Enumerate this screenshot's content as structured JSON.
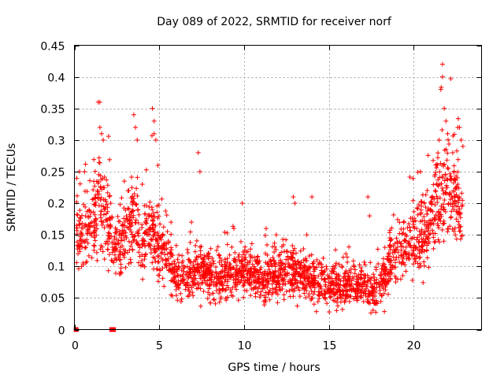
{
  "chart_data": {
    "type": "scatter",
    "title": "Day 089 of 2022, SRMTID for receiver norf",
    "xlabel": "GPS time / hours",
    "ylabel": "SRMTID / TECUs",
    "xlim": [
      0,
      24
    ],
    "ylim": [
      0,
      0.45
    ],
    "x_ticks": [
      "0",
      "5",
      "10",
      "15",
      "20"
    ],
    "y_ticks": [
      "0",
      "0.05",
      "0.1",
      "0.15",
      "0.2",
      "0.25",
      "0.3",
      "0.35",
      "0.4",
      "0.45"
    ],
    "grid": true,
    "marker": "plus",
    "series_color": "#ff0000",
    "trend": [
      [
        0.0,
        0.16
      ],
      [
        0.5,
        0.15
      ],
      [
        1.0,
        0.17
      ],
      [
        1.5,
        0.22
      ],
      [
        2.0,
        0.16
      ],
      [
        2.5,
        0.13
      ],
      [
        3.0,
        0.15
      ],
      [
        3.5,
        0.18
      ],
      [
        4.0,
        0.14
      ],
      [
        4.5,
        0.16
      ],
      [
        5.0,
        0.13
      ],
      [
        5.5,
        0.1
      ],
      [
        6.0,
        0.08
      ],
      [
        6.5,
        0.08
      ],
      [
        7.0,
        0.09
      ],
      [
        7.5,
        0.09
      ],
      [
        8.0,
        0.08
      ],
      [
        9.0,
        0.09
      ],
      [
        10.0,
        0.09
      ],
      [
        11.0,
        0.08
      ],
      [
        12.0,
        0.09
      ],
      [
        13.0,
        0.09
      ],
      [
        14.0,
        0.08
      ],
      [
        15.0,
        0.07
      ],
      [
        16.0,
        0.07
      ],
      [
        17.0,
        0.07
      ],
      [
        17.5,
        0.06
      ],
      [
        18.0,
        0.07
      ],
      [
        18.5,
        0.1
      ],
      [
        19.0,
        0.12
      ],
      [
        19.5,
        0.13
      ],
      [
        20.0,
        0.14
      ],
      [
        20.5,
        0.15
      ],
      [
        21.0,
        0.17
      ],
      [
        21.5,
        0.21
      ],
      [
        22.0,
        0.23
      ],
      [
        22.5,
        0.2
      ],
      [
        23.0,
        0.19
      ]
    ],
    "peaks": [
      [
        1.4,
        0.36
      ],
      [
        1.5,
        0.36
      ],
      [
        1.5,
        0.32
      ],
      [
        1.6,
        0.31
      ],
      [
        1.7,
        0.3
      ],
      [
        3.5,
        0.34
      ],
      [
        3.6,
        0.32
      ],
      [
        3.7,
        0.3
      ],
      [
        4.6,
        0.35
      ],
      [
        4.7,
        0.33
      ],
      [
        4.7,
        0.31
      ],
      [
        4.8,
        0.3
      ],
      [
        7.3,
        0.28
      ],
      [
        7.4,
        0.25
      ],
      [
        9.9,
        0.2
      ],
      [
        12.9,
        0.21
      ],
      [
        13.0,
        0.2
      ],
      [
        14.0,
        0.21
      ],
      [
        17.3,
        0.21
      ],
      [
        17.4,
        0.18
      ],
      [
        21.5,
        0.3
      ],
      [
        21.6,
        0.38
      ],
      [
        21.7,
        0.42
      ],
      [
        21.7,
        0.4
      ],
      [
        21.8,
        0.35
      ],
      [
        21.9,
        0.33
      ],
      [
        22.0,
        0.31
      ],
      [
        22.6,
        0.32
      ],
      [
        22.7,
        0.32
      ],
      [
        22.8,
        0.3
      ],
      [
        22.9,
        0.29
      ],
      [
        21.4,
        0.26
      ],
      [
        22.3,
        0.28
      ],
      [
        0.3,
        0.25
      ],
      [
        0.6,
        0.25
      ],
      [
        3.2,
        0.22
      ],
      [
        4.0,
        0.23
      ],
      [
        6.9,
        0.17
      ],
      [
        9.4,
        0.16
      ],
      [
        11.3,
        0.16
      ],
      [
        11.9,
        0.15
      ],
      [
        13.7,
        0.15
      ],
      [
        16.0,
        0.12
      ],
      [
        18.3,
        0.13
      ]
    ],
    "zero_points": [
      0.1,
      2.2,
      2.3
    ]
  }
}
